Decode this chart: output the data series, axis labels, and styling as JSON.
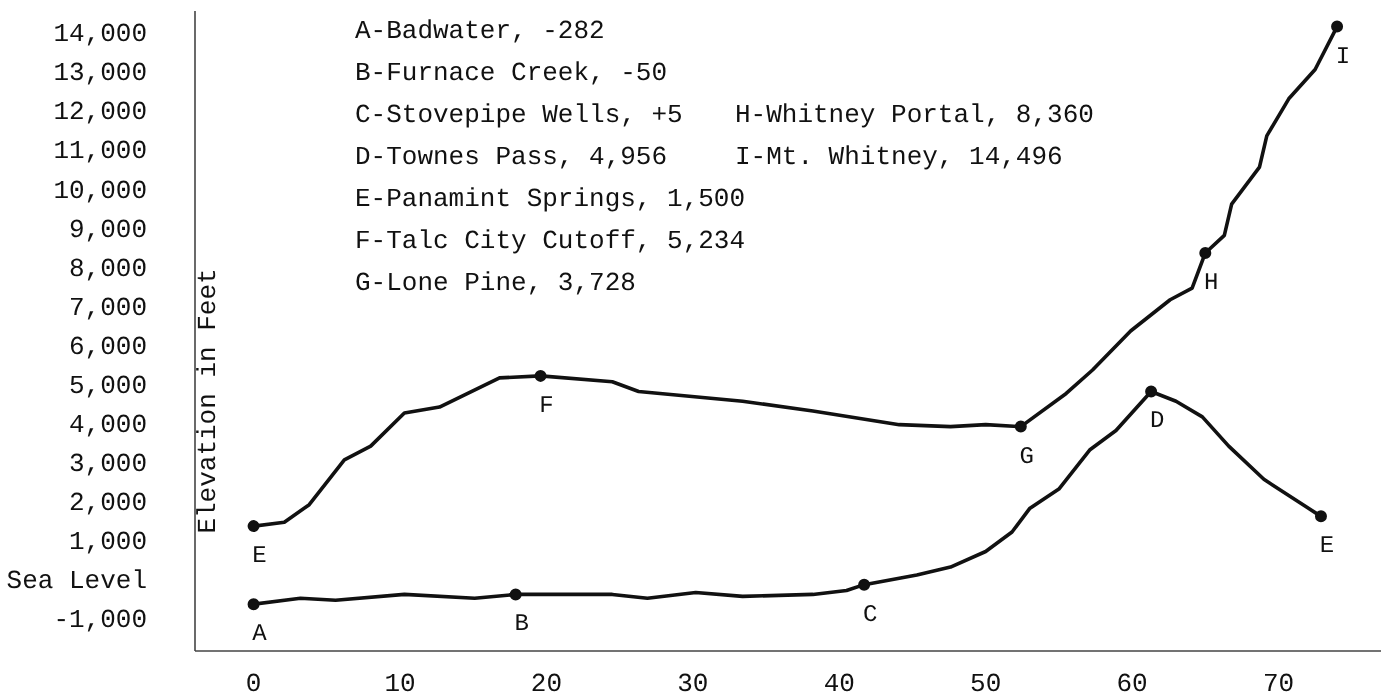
{
  "chart_data": {
    "type": "line",
    "ylabel": "Elevation in Feet",
    "xlim": [
      -4,
      77
    ],
    "ylim": [
      -1800,
      14600
    ],
    "xticks": [
      0,
      10,
      20,
      30,
      40,
      50,
      60,
      70
    ],
    "yticks": [
      {
        "value": -1000,
        "label": "-1,000"
      },
      {
        "value": 0,
        "label": "Sea Level"
      },
      {
        "value": 1000,
        "label": "1,000"
      },
      {
        "value": 2000,
        "label": "2,000"
      },
      {
        "value": 3000,
        "label": "3,000"
      },
      {
        "value": 4000,
        "label": "4,000"
      },
      {
        "value": 5000,
        "label": "5,000"
      },
      {
        "value": 6000,
        "label": "6,000"
      },
      {
        "value": 7000,
        "label": "7,000"
      },
      {
        "value": 8000,
        "label": "8,000"
      },
      {
        "value": 9000,
        "label": "9,000"
      },
      {
        "value": 10000,
        "label": "10,000"
      },
      {
        "value": 11000,
        "label": "11,000"
      },
      {
        "value": 12000,
        "label": "12,000"
      },
      {
        "value": 13000,
        "label": "13,000"
      },
      {
        "value": 14000,
        "label": "14,000"
      }
    ],
    "grid": false,
    "line_style": "solid",
    "series": [
      {
        "color": "#111111",
        "marker": "none",
        "x": [
          0,
          3.2,
          5.6,
          10.3,
          15.1,
          17.9,
          24.5,
          26.9,
          30.2,
          33.4,
          38.2,
          40.5,
          41.7,
          45.3,
          47.6,
          50.0,
          51.8,
          53.0,
          55.0,
          57.1,
          58.9,
          61.3,
          63.0,
          64.8,
          66.6,
          69.0,
          72.9
        ],
        "values": [
          -600,
          -450,
          -500,
          -350,
          -450,
          -350,
          -350,
          -450,
          -300,
          -400,
          -350,
          -250,
          -100,
          150,
          350,
          750,
          1250,
          1850,
          2350,
          3350,
          3850,
          4850,
          4600,
          4200,
          3450,
          2600,
          1650
        ]
      },
      {
        "color": "#111111",
        "marker": "none",
        "x": [
          0,
          2.1,
          3.8,
          6.2,
          8.0,
          10.3,
          12.7,
          16.8,
          19.6,
          24.5,
          26.3,
          33.4,
          38.2,
          44.1,
          47.6,
          50.0,
          52.4,
          55.5,
          57.3,
          59.9,
          62.6,
          64.1,
          65.0,
          66.3,
          66.8,
          68.7,
          69.2,
          70.7,
          72.5,
          74.0
        ],
        "values": [
          1400,
          1500,
          1950,
          3100,
          3450,
          4300,
          4450,
          5200,
          5250,
          5100,
          4850,
          4600,
          4350,
          4000,
          3950,
          4000,
          3950,
          4800,
          5400,
          6400,
          7200,
          7500,
          8400,
          8850,
          9650,
          10600,
          11400,
          12350,
          13100,
          14200
        ]
      },
      {
        "type": "scatter",
        "color": "#111111",
        "marker": "circle",
        "x": [
          0,
          17.9,
          41.7,
          61.3,
          72.9,
          0,
          19.6,
          52.4,
          65.0,
          74.0
        ],
        "values": [
          -600,
          -350,
          -100,
          4850,
          1650,
          1400,
          5250,
          3950,
          8400,
          14200
        ]
      }
    ],
    "annotations": [
      "A-Badwater, -282",
      "B-Furnace Creek, -50",
      "C-Stovepipe Wells, +5",
      "D-Townes Pass, 4,956",
      "E-Panamint Springs, 1,500",
      "F-Talc City Cutoff, 5,234",
      "G-Lone Pine, 3,728",
      "H-Whitney Portal, 8,360",
      "I-Mt. Whitney, 14,496",
      {
        "text": "A",
        "x": 0,
        "y": -600
      },
      {
        "text": "B",
        "x": 17.9,
        "y": -350
      },
      {
        "text": "C",
        "x": 41.7,
        "y": -100
      },
      {
        "text": "D",
        "x": 61.3,
        "y": 4850
      },
      {
        "text": "E",
        "x": 72.9,
        "y": 1650
      },
      {
        "text": "E",
        "x": 0,
        "y": 1400
      },
      {
        "text": "F",
        "x": 19.6,
        "y": 5250
      },
      {
        "text": "G",
        "x": 52.4,
        "y": 3950
      },
      {
        "text": "H",
        "x": 65.0,
        "y": 8400
      },
      {
        "text": "I",
        "x": 74.0,
        "y": 14200
      }
    ]
  }
}
